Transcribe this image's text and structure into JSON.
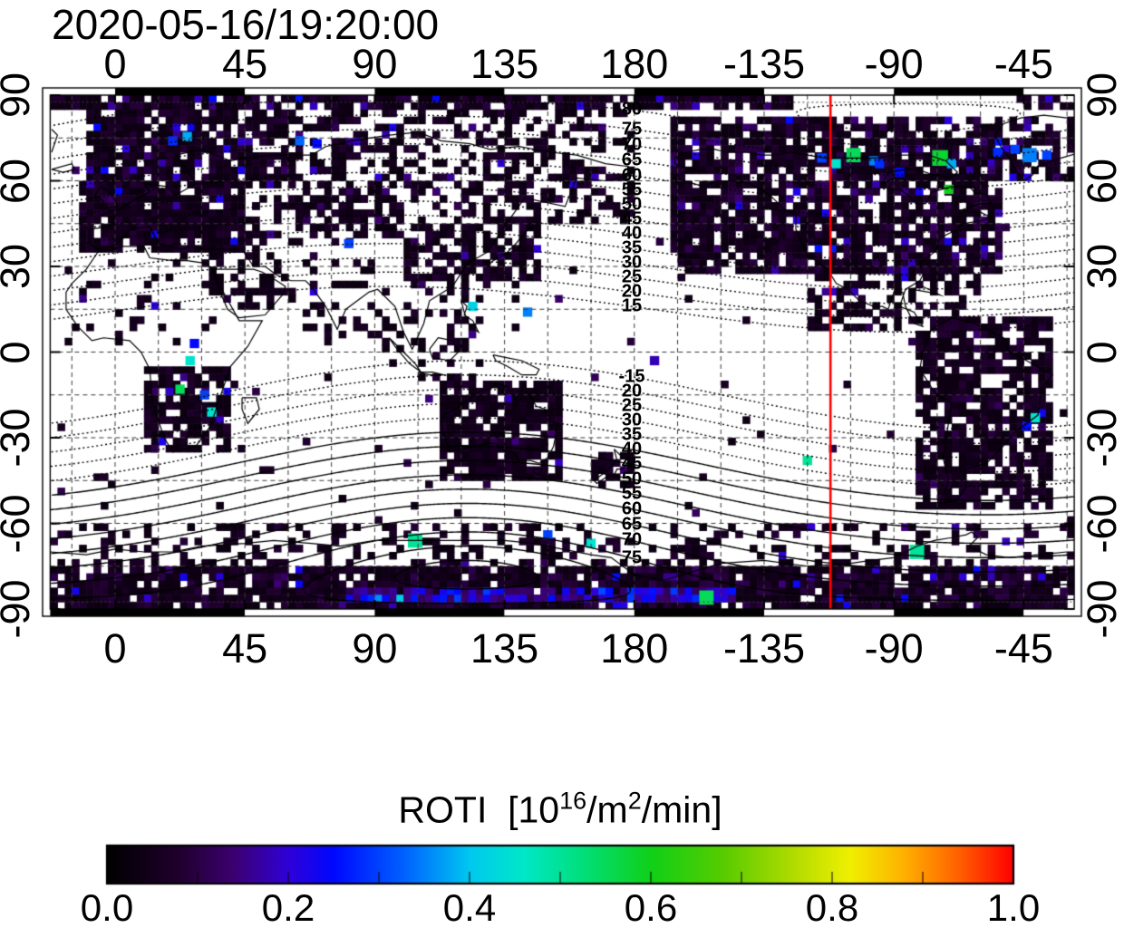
{
  "chart_data": {
    "type": "heatmap",
    "title": "2020-05-16/19:20:00",
    "x_axis": {
      "range_lon": [
        -22.5,
        332.5
      ],
      "tick_lons": [
        0,
        45,
        90,
        135,
        180,
        225,
        270,
        315
      ],
      "label_values": [
        "0",
        "45",
        "90",
        "135",
        "180",
        "-135",
        "-90",
        "-45"
      ],
      "grid_step_deg": 15
    },
    "y_axis": {
      "range_lat": [
        -90,
        90
      ],
      "tick_lats": [
        90,
        60,
        30,
        0,
        -30,
        -60,
        -90
      ],
      "label_values": [
        "90",
        "60",
        "30",
        "0",
        "-30",
        "-60",
        "-90"
      ],
      "grid_step_deg": 15
    },
    "red_meridian_lon": -112,
    "red_color": "#ff0000",
    "magnetic_contours": {
      "north_pole": {
        "lat": 82,
        "lon": -85
      },
      "south_pole": {
        "lat": -78,
        "lon": 122
      },
      "levels_abs": [
        15,
        20,
        25,
        30,
        35,
        40,
        45,
        50,
        55,
        60,
        65,
        70,
        75,
        80,
        85
      ],
      "north_labels": [
        "80",
        "75",
        "70",
        "65",
        "60",
        "55",
        "50",
        "45",
        "40",
        "35",
        "30",
        "25",
        "20",
        "15"
      ],
      "south_labels": [
        "-15",
        "20",
        "25",
        "30",
        "35",
        "40",
        "45",
        "50",
        "55",
        "60",
        "65",
        "70",
        "75"
      ],
      "label_lon_x": 697
    },
    "colorbar": {
      "title_prefix": "ROTI  [10",
      "title_sup1": "16",
      "title_mid": "/m",
      "title_sup2": "2",
      "title_suffix": "/min]",
      "tick_labels": [
        "0.0",
        "0.2",
        "0.4",
        "0.6",
        "0.8",
        "1.0"
      ],
      "tick_values": [
        0,
        0.2,
        0.4,
        0.6,
        0.8,
        1.0
      ],
      "minor_tick_step": 0.1,
      "range": [
        0,
        1
      ],
      "stops": [
        [
          0,
          "#000000"
        ],
        [
          0.08,
          "#20002e"
        ],
        [
          0.14,
          "#3c0070"
        ],
        [
          0.2,
          "#3000d8"
        ],
        [
          0.25,
          "#0008ff"
        ],
        [
          0.33,
          "#0064ff"
        ],
        [
          0.4,
          "#00c8f0"
        ],
        [
          0.46,
          "#00e8c8"
        ],
        [
          0.52,
          "#00e080"
        ],
        [
          0.6,
          "#10d018"
        ],
        [
          0.68,
          "#58cc00"
        ],
        [
          0.76,
          "#b4dc00"
        ],
        [
          0.82,
          "#f0f000"
        ],
        [
          0.88,
          "#ffb000"
        ],
        [
          0.94,
          "#ff6000"
        ],
        [
          1,
          "#ff0000"
        ]
      ]
    },
    "cell_size_deg": 2.5,
    "regions": [
      {
        "name": "arctic-cap-west",
        "lon": [
          -22.5,
          235
        ],
        "lat": [
          84,
          90
        ],
        "density": 0.85,
        "value": [
          0.03,
          0.1
        ],
        "accent": 0.06
      },
      {
        "name": "arctic-cap-east",
        "lon": [
          312,
          332.5
        ],
        "lat": [
          84,
          90
        ],
        "density": 0.8,
        "value": [
          0.03,
          0.1
        ],
        "accent": 0.06
      },
      {
        "name": "eurasia-north-west",
        "lon": [
          -10,
          62
        ],
        "lat": [
          58,
          84
        ],
        "density": 0.8,
        "value": [
          0.03,
          0.1
        ],
        "accent": 0.08
      },
      {
        "name": "siberia",
        "lon": [
          62,
          180
        ],
        "lat": [
          46,
          84
        ],
        "density": 0.42,
        "value": [
          0.03,
          0.09
        ],
        "accent": 0.05
      },
      {
        "name": "europe",
        "lon": [
          -12,
          45
        ],
        "lat": [
          36,
          60
        ],
        "density": 0.88,
        "value": [
          0.03,
          0.09
        ],
        "accent": 0.04
      },
      {
        "name": "central-asia",
        "lon": [
          45,
          100
        ],
        "lat": [
          38,
          56
        ],
        "density": 0.45,
        "value": [
          0.03,
          0.08
        ],
        "accent": 0.03
      },
      {
        "name": "east-asia",
        "lon": [
          100,
          147
        ],
        "lat": [
          22,
          46
        ],
        "density": 0.62,
        "value": [
          0.03,
          0.09
        ],
        "accent": 0.04
      },
      {
        "name": "mideast",
        "lon": [
          33,
          62
        ],
        "lat": [
          14,
          38
        ],
        "density": 0.38,
        "value": [
          0.03,
          0.07
        ],
        "accent": 0.02
      },
      {
        "name": "india",
        "lon": [
          66,
          92
        ],
        "lat": [
          6,
          32
        ],
        "density": 0.25,
        "value": [
          0.03,
          0.07
        ],
        "accent": 0.03
      },
      {
        "name": "se-asia",
        "lon": [
          93,
          128
        ],
        "lat": [
          -10,
          22
        ],
        "density": 0.3,
        "value": [
          0.03,
          0.08
        ],
        "accent": 0.05
      },
      {
        "name": "africa-north",
        "lon": [
          -17,
          34
        ],
        "lat": [
          2,
          35
        ],
        "density": 0.13,
        "value": [
          0.03,
          0.06
        ],
        "accent": 0.02
      },
      {
        "name": "africa-south",
        "lon": [
          11,
          41
        ],
        "lat": [
          -35,
          -6
        ],
        "density": 0.75,
        "value": [
          0.03,
          0.08
        ],
        "accent": 0.05
      },
      {
        "name": "australia",
        "lon": [
          112,
          155
        ],
        "lat": [
          -44,
          -11
        ],
        "density": 0.85,
        "value": [
          0.03,
          0.08
        ],
        "accent": 0.03
      },
      {
        "name": "new-zealand",
        "lon": [
          165,
          179
        ],
        "lat": [
          -47,
          -34
        ],
        "density": 0.7,
        "value": [
          0.03,
          0.07
        ],
        "accent": 0.03
      },
      {
        "name": "north-america",
        "lon": [
          192,
          308
        ],
        "lat": [
          28,
          82
        ],
        "density": 0.8,
        "value": [
          0.03,
          0.1
        ],
        "accent": 0.09
      },
      {
        "name": "central-america",
        "lon": [
          240,
          300
        ],
        "lat": [
          8,
          28
        ],
        "density": 0.45,
        "value": [
          0.03,
          0.08
        ],
        "accent": 0.04
      },
      {
        "name": "south-america",
        "lon": [
          278,
          326
        ],
        "lat": [
          -56,
          12
        ],
        "density": 0.72,
        "value": [
          0.03,
          0.09
        ],
        "accent": 0.06
      },
      {
        "name": "greenland",
        "lon": [
          305,
          332.5
        ],
        "lat": [
          60,
          82
        ],
        "density": 0.6,
        "value": [
          0.03,
          0.1
        ],
        "accent": 0.09
      },
      {
        "name": "antarctic-cap",
        "lon": [
          -22.5,
          332.5
        ],
        "lat": [
          -90,
          -76
        ],
        "density": 0.9,
        "value": [
          0.03,
          0.11
        ],
        "accent": 0.05
      },
      {
        "name": "antarctic-coast",
        "lon": [
          -22.5,
          332.5
        ],
        "lat": [
          -75,
          -61
        ],
        "density": 0.3,
        "value": [
          0.03,
          0.09
        ],
        "accent": 0.04
      },
      {
        "name": "antarctic-blue-band",
        "lon": [
          80,
          215
        ],
        "lat": [
          -88,
          -83
        ],
        "density": 0.85,
        "value": [
          0.12,
          0.3
        ],
        "accent": 0.1
      },
      {
        "name": "ocean-sparse",
        "lon": [
          -22.5,
          332.5
        ],
        "lat": [
          -60,
          78
        ],
        "density": 0.013,
        "value": [
          0.03,
          0.16
        ],
        "accent": 0.05
      }
    ],
    "hotspots": [
      {
        "lon": -115,
        "lat": 68,
        "value": 0.3
      },
      {
        "lon": -110,
        "lat": 66,
        "value": 0.45
      },
      {
        "lon": -104,
        "lat": 69,
        "value": 0.55,
        "size": 2
      },
      {
        "lon": -97,
        "lat": 67,
        "value": 0.35
      },
      {
        "lon": -95,
        "lat": 66,
        "value": 0.28
      },
      {
        "lon": -88,
        "lat": 63,
        "value": 0.25
      },
      {
        "lon": -74,
        "lat": 68,
        "value": 0.58,
        "size": 2.2
      },
      {
        "lon": -70,
        "lat": 66,
        "value": 0.38
      },
      {
        "lon": -71,
        "lat": 57,
        "value": 0.6
      },
      {
        "lon": -54,
        "lat": 70,
        "value": 0.28
      },
      {
        "lon": -48,
        "lat": 71,
        "value": 0.3
      },
      {
        "lon": -43,
        "lat": 69,
        "value": 0.35,
        "size": 2
      },
      {
        "lon": -37,
        "lat": 69,
        "value": 0.3
      },
      {
        "lon": 20,
        "lat": 74,
        "value": 0.28
      },
      {
        "lon": 25,
        "lat": 75.5,
        "value": 0.38
      },
      {
        "lon": 64,
        "lat": 74,
        "value": 0.33
      },
      {
        "lon": 70,
        "lat": 73,
        "value": 0.25
      },
      {
        "lon": 81,
        "lat": 38,
        "value": 0.3
      },
      {
        "lon": 27.5,
        "lat": 3,
        "value": 0.25
      },
      {
        "lon": 26,
        "lat": -3,
        "value": 0.45
      },
      {
        "lon": 22.5,
        "lat": -13,
        "value": 0.55
      },
      {
        "lon": 31,
        "lat": -15,
        "value": 0.3
      },
      {
        "lon": 33.5,
        "lat": -21,
        "value": 0.45
      },
      {
        "lon": 124,
        "lat": 16,
        "value": 0.42
      },
      {
        "lon": 143,
        "lat": 14,
        "value": 0.35
      },
      {
        "lon": -173,
        "lat": -3,
        "value": 0.18
      },
      {
        "lon": -120,
        "lat": -38,
        "value": 0.5
      },
      {
        "lon": -41,
        "lat": -23,
        "value": 0.45
      },
      {
        "lon": -44,
        "lat": -26,
        "value": 0.25
      },
      {
        "lon": 104,
        "lat": -66,
        "value": 0.5,
        "size": 2
      },
      {
        "lon": 165,
        "lat": -67,
        "value": 0.45
      },
      {
        "lon": -82,
        "lat": -70,
        "value": 0.5,
        "size": 2
      },
      {
        "lon": -155,
        "lat": -86,
        "value": 0.55,
        "size": 2
      },
      {
        "lon": 150,
        "lat": -64,
        "value": 0.3
      }
    ]
  }
}
